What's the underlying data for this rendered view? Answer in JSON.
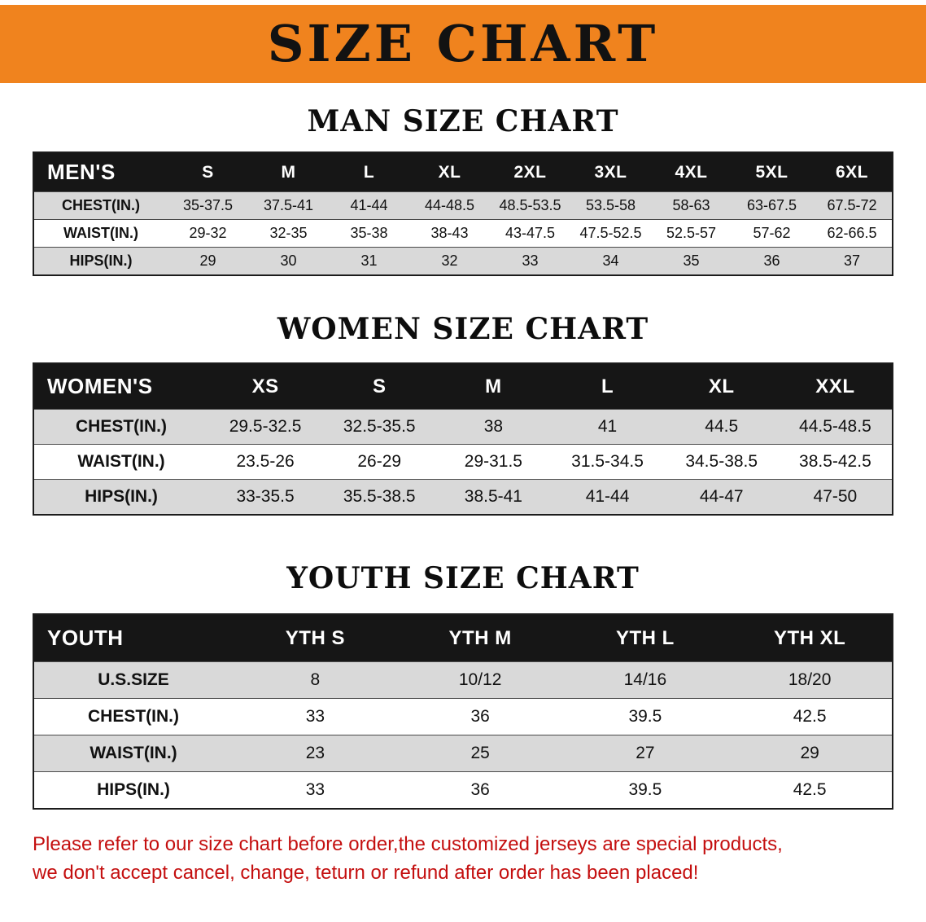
{
  "banner": {
    "title": "SIZE CHART"
  },
  "chart_data": [
    {
      "type": "table",
      "id": "men",
      "title": "MAN SIZE CHART",
      "columns": [
        "MEN'S",
        "S",
        "M",
        "L",
        "XL",
        "2XL",
        "3XL",
        "4XL",
        "5XL",
        "6XL"
      ],
      "rows": [
        [
          "CHEST(IN.)",
          "35-37.5",
          "37.5-41",
          "41-44",
          "44-48.5",
          "48.5-53.5",
          "53.5-58",
          "58-63",
          "63-67.5",
          "67.5-72"
        ],
        [
          "WAIST(IN.)",
          "29-32",
          "32-35",
          "35-38",
          "38-43",
          "43-47.5",
          "47.5-52.5",
          "52.5-57",
          "57-62",
          "62-66.5"
        ],
        [
          "HIPS(IN.)",
          "29",
          "30",
          "31",
          "32",
          "33",
          "34",
          "35",
          "36",
          "37"
        ]
      ]
    },
    {
      "type": "table",
      "id": "women",
      "title": "WOMEN SIZE CHART",
      "columns": [
        "WOMEN'S",
        "XS",
        "S",
        "M",
        "L",
        "XL",
        "XXL"
      ],
      "rows": [
        [
          "CHEST(IN.)",
          "29.5-32.5",
          "32.5-35.5",
          "38",
          "41",
          "44.5",
          "44.5-48.5"
        ],
        [
          "WAIST(IN.)",
          "23.5-26",
          "26-29",
          "29-31.5",
          "31.5-34.5",
          "34.5-38.5",
          "38.5-42.5"
        ],
        [
          "HIPS(IN.)",
          "33-35.5",
          "35.5-38.5",
          "38.5-41",
          "41-44",
          "44-47",
          "47-50"
        ]
      ]
    },
    {
      "type": "table",
      "id": "youth",
      "title": "YOUTH SIZE CHART",
      "columns": [
        "YOUTH",
        "YTH S",
        "YTH M",
        "YTH L",
        "YTH XL"
      ],
      "rows": [
        [
          "U.S.SIZE",
          "8",
          "10/12",
          "14/16",
          "18/20"
        ],
        [
          "CHEST(IN.)",
          "33",
          "36",
          "39.5",
          "42.5"
        ],
        [
          "WAIST(IN.)",
          "23",
          "25",
          "27",
          "29"
        ],
        [
          "HIPS(IN.)",
          "33",
          "36",
          "39.5",
          "42.5"
        ]
      ]
    }
  ],
  "footer": {
    "line1": "Please refer to our size chart before order,the customized jerseys are special products,",
    "line2": "we don't accept cancel, change, teturn or refund after order has been placed!"
  },
  "colors": {
    "banner_bg": "#f0831e",
    "table_header_bg": "#161616",
    "row_stripe": "#d9d9d9",
    "footer_text": "#c40f0f"
  }
}
